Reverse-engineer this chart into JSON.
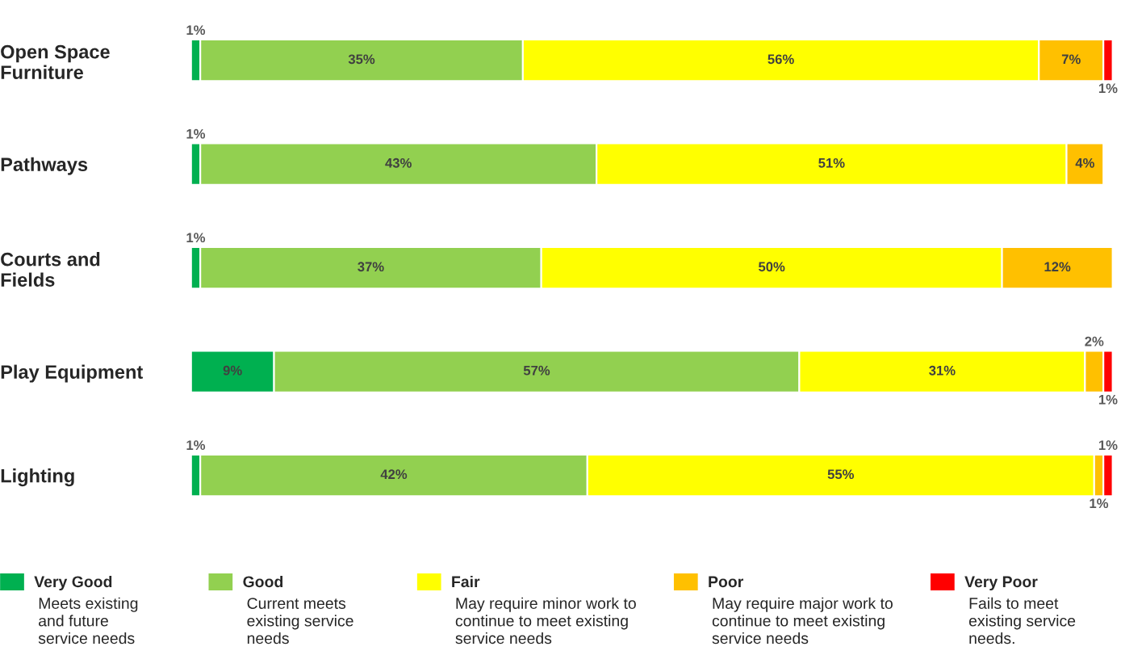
{
  "chart_data": {
    "type": "bar",
    "orientation": "horizontal",
    "stacked": true,
    "legend": "bottom",
    "grid": false,
    "categories": [
      "Open Space\nFurniture",
      "Pathways",
      "Courts and\nFields",
      "Play Equipment",
      "Lighting"
    ],
    "series": [
      {
        "name": "Very Good",
        "color": "#00b050",
        "values": [
          1,
          1,
          1,
          9,
          1
        ],
        "value_labels": [
          "1%",
          "1%",
          "1%",
          "9%",
          "1%"
        ]
      },
      {
        "name": "Good",
        "color": "#92d050",
        "values": [
          35,
          43,
          37,
          57,
          42
        ],
        "value_labels": [
          "35%",
          "43%",
          "37%",
          "57%",
          "42%"
        ]
      },
      {
        "name": "Fair",
        "color": "#ffff00",
        "values": [
          56,
          51,
          50,
          31,
          55
        ],
        "value_labels": [
          "56%",
          "51%",
          "50%",
          "31%",
          "55%"
        ]
      },
      {
        "name": "Poor",
        "color": "#ffc000",
        "values": [
          7,
          4,
          12,
          2,
          1
        ],
        "value_labels": [
          "7%",
          "4%",
          "12%",
          "2%",
          "1%"
        ]
      },
      {
        "name": "Very Poor",
        "color": "#ff0000",
        "values": [
          1,
          null,
          null,
          1,
          1
        ],
        "value_labels": [
          "1%",
          null,
          null,
          "1%",
          "1%"
        ]
      }
    ],
    "annotations": [
      "Meets existing\nand future\nservice needs",
      "Current meets\nexisting service\nneeds",
      "May require minor work to\ncontinue to meet existing\nservice needs",
      "May require major work to\ncontinue to meet existing\nservice needs",
      "Fails to meet\nexisting service\nneeds."
    ]
  }
}
